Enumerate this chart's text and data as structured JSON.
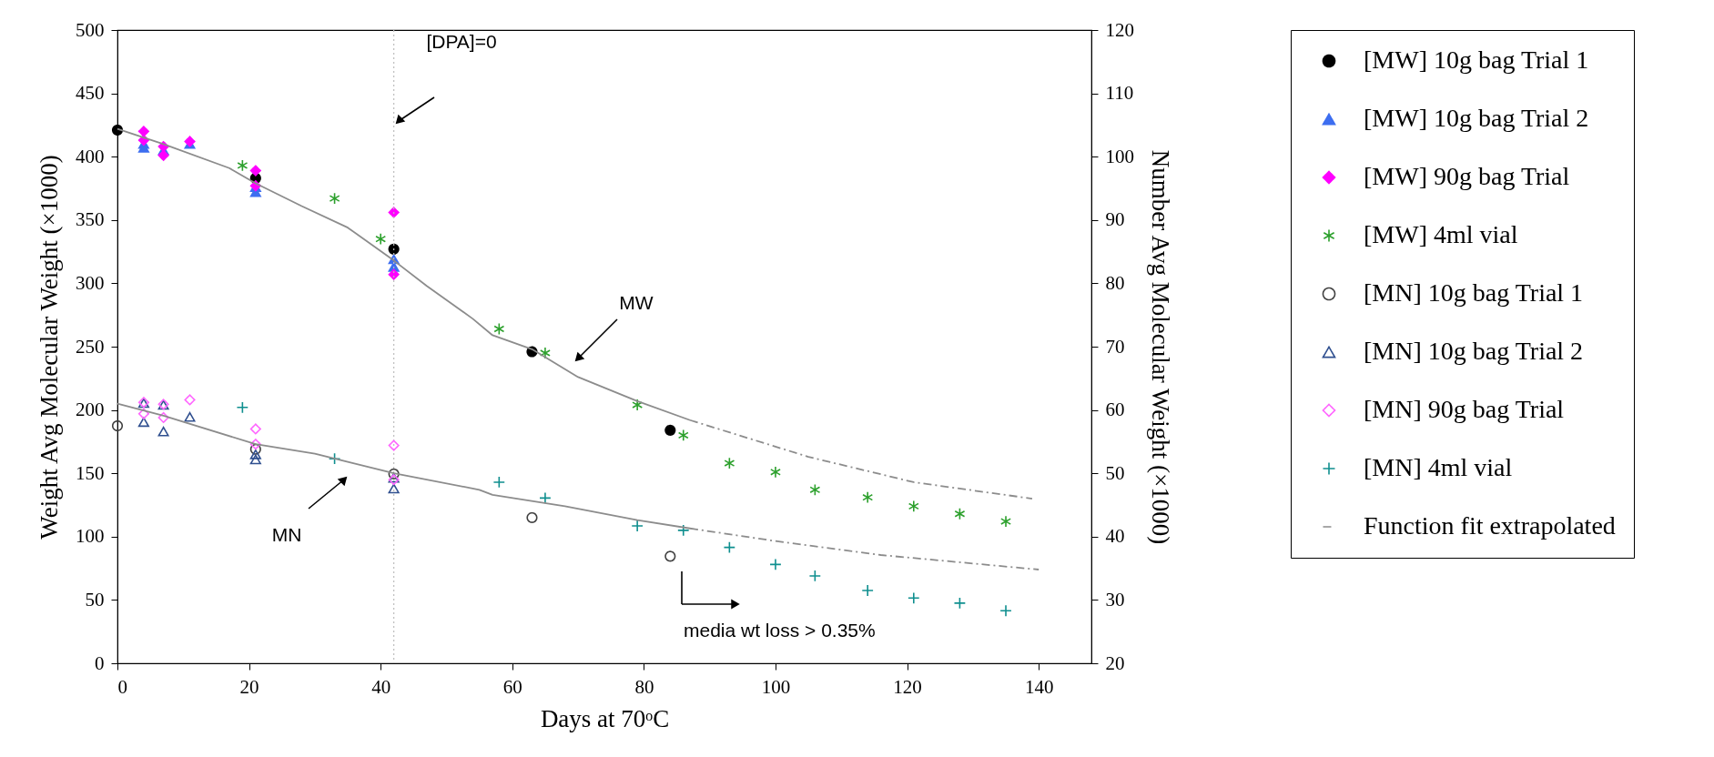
{
  "chart_data": {
    "type": "scatter",
    "xlabel": "Days at 70ᵒC",
    "ylabel": "Weight Avg Molecular Weight (×1000)",
    "y2label": "Number Avg Molecular Weight (×1000)",
    "xlim": [
      0,
      148
    ],
    "xticks": [
      0,
      20,
      40,
      60,
      80,
      100,
      120,
      140
    ],
    "ylim": [
      0,
      500
    ],
    "yticks": [
      0,
      50,
      100,
      150,
      200,
      250,
      300,
      350,
      400,
      450,
      500
    ],
    "y2lim": [
      20,
      120
    ],
    "y2ticks": [
      20,
      30,
      40,
      50,
      60,
      70,
      80,
      90,
      100,
      110,
      120
    ],
    "legend": "right",
    "series": [
      {
        "name": "[MW] 10g bag Trial 1",
        "type": "scatter",
        "marker": "circle",
        "color": "#000000",
        "x": [
          0,
          21,
          42,
          63,
          84
        ],
        "values": [
          421,
          383,
          327,
          246,
          184
        ]
      },
      {
        "name": "[MW] 10g bag Trial 2",
        "type": "scatter",
        "marker": "triangle",
        "color": "#3d6ef0",
        "x": [
          4,
          4,
          7,
          11,
          21,
          21,
          42,
          42
        ],
        "values": [
          410,
          407,
          405,
          410,
          376,
          372,
          319,
          313
        ]
      },
      {
        "name": "[MW] 90g bag Trial",
        "type": "scatter",
        "marker": "diamond",
        "color": "#ff00ff",
        "x": [
          4,
          4,
          7,
          7,
          11,
          21,
          21,
          42,
          42
        ],
        "values": [
          420,
          413,
          408,
          401,
          412,
          389,
          377,
          356,
          307
        ]
      },
      {
        "name": "[MW] 4ml vial",
        "type": "scatter",
        "marker": "cross",
        "color": "#2ca02c",
        "x": [
          19,
          33,
          40,
          58,
          65,
          79,
          86,
          93,
          100,
          106,
          114,
          121,
          128,
          135
        ],
        "values": [
          393,
          367,
          335,
          264,
          245,
          204,
          180,
          158,
          151,
          137,
          131,
          124,
          118,
          112
        ]
      },
      {
        "name": "[MN] 10g bag Trial 1",
        "type": "scatter",
        "axis": "y2",
        "marker": "circle",
        "color": "#404040",
        "x": [
          0,
          21,
          42,
          63,
          84
        ],
        "values": [
          57.5,
          53.8,
          49.9,
          43,
          36.9
        ]
      },
      {
        "name": "[MN] 10g bag Trial 2",
        "type": "scatter",
        "axis": "y2",
        "marker": "triangle",
        "color": "#2f4f8f",
        "x": [
          4,
          4,
          7,
          7,
          11,
          21,
          21,
          42,
          42
        ],
        "values": [
          61.1,
          58.1,
          60.8,
          56.6,
          58.9,
          53,
          52.2,
          49.3,
          47.6
        ]
      },
      {
        "name": "[MN] 90g bag Trial",
        "type": "scatter",
        "axis": "y2",
        "marker": "diamond",
        "color": "#ff66ff",
        "x": [
          4,
          4,
          7,
          7,
          11,
          21,
          21,
          42,
          42
        ],
        "values": [
          61.2,
          59.4,
          60.9,
          58.8,
          61.6,
          57,
          54.6,
          54.4,
          49
        ]
      },
      {
        "name": "[MN] 4ml vial",
        "type": "scatter",
        "axis": "y2",
        "marker": "cross",
        "color": "#0f8f8f",
        "x": [
          19,
          33,
          58,
          65,
          79,
          86,
          93,
          100,
          106,
          114,
          121,
          128,
          135
        ],
        "values": [
          60.4,
          52.3,
          48.6,
          46.1,
          41.7,
          41.0,
          38.3,
          35.6,
          33.8,
          31.5,
          30.3,
          29.5,
          28.3
        ]
      },
      {
        "type": "line",
        "line_style": "solid",
        "color": "#8c8c8c",
        "x": [
          0,
          7,
          17,
          21,
          28,
          35,
          42,
          47,
          54,
          57,
          63,
          70,
          79,
          87
        ],
        "values": [
          422,
          410,
          391,
          379,
          361,
          344,
          318,
          298,
          272,
          259,
          248,
          226,
          207,
          192
        ]
      },
      {
        "name": "Function fit extrapolated",
        "type": "line",
        "line_style": "dashed",
        "color": "#8c8c8c",
        "x": [
          87,
          105,
          121,
          139
        ],
        "values": [
          192,
          163,
          143,
          130
        ]
      },
      {
        "type": "line",
        "axis": "y2",
        "line_style": "solid",
        "color": "#8c8c8c",
        "x": [
          0,
          7,
          21,
          30,
          42,
          55,
          57,
          68,
          79,
          87
        ],
        "values": [
          61,
          59.1,
          54.6,
          53.1,
          50,
          47.4,
          46.6,
          44.8,
          42.6,
          41.3
        ]
      },
      {
        "type": "line",
        "axis": "y2",
        "line_style": "dashed",
        "color": "#8c8c8c",
        "x": [
          87,
          100,
          116,
          140
        ],
        "values": [
          41.3,
          39.3,
          37.1,
          34.8
        ]
      }
    ],
    "ref_lines": [
      {
        "axis": "x",
        "value": 42,
        "color": "#bdbdbd",
        "line_style": "dotted"
      }
    ],
    "annotations": [
      "[DPA]=0",
      "MW",
      "MN",
      "media wt loss > 0.35%"
    ]
  }
}
